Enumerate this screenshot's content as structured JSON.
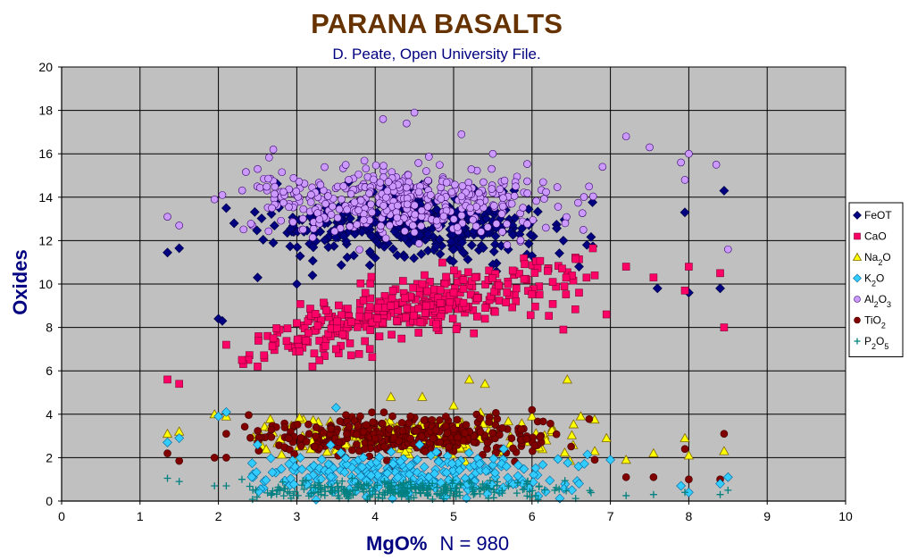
{
  "chart_data": {
    "type": "scatter",
    "title": "PARANA BASALTS",
    "subtitle": "D. Peate, Open University File.",
    "xlabel": "MgO%",
    "xlabel_note": "N = 980",
    "ylabel": "Oxides",
    "xlim": [
      0,
      10
    ],
    "ylim": [
      0,
      20
    ],
    "xticks": [
      "0",
      "1",
      "2",
      "3",
      "4",
      "5",
      "6",
      "7",
      "8",
      "9",
      "10"
    ],
    "yticks": [
      "0",
      "2",
      "4",
      "6",
      "8",
      "10",
      "12",
      "14",
      "16",
      "18",
      "20"
    ],
    "grid": true,
    "plot_background": "#c0c0c0",
    "legend_position": "right",
    "series": [
      {
        "name": "FeOT",
        "legend_parts": [
          [
            "FeOT",
            false
          ]
        ],
        "marker": "diamond",
        "color": "#000080",
        "stroke": "#000040",
        "center": [
          [
            2.0,
            8.4
          ],
          [
            2.05,
            8.3
          ],
          [
            1.35,
            11.45
          ],
          [
            1.5,
            11.65
          ],
          [
            2.1,
            13.5
          ],
          [
            2.2,
            12.8
          ],
          [
            2.5,
            10.3
          ],
          [
            2.7,
            11.9
          ],
          [
            3.0,
            10.0
          ],
          [
            3.2,
            10.4
          ],
          [
            3.6,
            12.2
          ],
          [
            4.0,
            11.2
          ],
          [
            4.5,
            12.0
          ],
          [
            5.0,
            11.6
          ],
          [
            5.5,
            10.9
          ],
          [
            6.0,
            11.3
          ],
          [
            6.4,
            12.0
          ],
          [
            6.7,
            11.8
          ],
          [
            6.6,
            10.8
          ],
          [
            7.6,
            9.8
          ],
          [
            7.95,
            13.3
          ],
          [
            8.0,
            9.6
          ],
          [
            8.4,
            9.8
          ],
          [
            8.45,
            14.3
          ]
        ],
        "cloud": {
          "n": 360,
          "x": [
            2.4,
            6.8
          ],
          "xpeak": 4.4,
          "xspread": 0.95,
          "y": 12.7,
          "yspread": 0.75
        }
      },
      {
        "name": "CaO",
        "legend_parts": [
          [
            "CaO",
            false
          ]
        ],
        "marker": "square",
        "color": "#ff0066",
        "stroke": "#800033",
        "center": [
          [
            1.35,
            5.6
          ],
          [
            1.5,
            5.4
          ],
          [
            2.1,
            7.2
          ],
          [
            2.3,
            6.5
          ],
          [
            2.5,
            6.2
          ],
          [
            2.7,
            7.5
          ],
          [
            3.0,
            8.2
          ],
          [
            3.2,
            6.2
          ],
          [
            3.5,
            7.0
          ],
          [
            3.8,
            8.5
          ],
          [
            4.2,
            9.0
          ],
          [
            4.6,
            10.0
          ],
          [
            5.0,
            9.6
          ],
          [
            5.4,
            8.4
          ],
          [
            5.8,
            9.8
          ],
          [
            6.2,
            10.6
          ],
          [
            6.4,
            7.9
          ],
          [
            6.6,
            9.6
          ],
          [
            6.8,
            10.4
          ],
          [
            6.95,
            8.6
          ],
          [
            7.2,
            10.8
          ],
          [
            7.55,
            10.3
          ],
          [
            7.95,
            9.7
          ],
          [
            8.0,
            10.8
          ],
          [
            8.4,
            10.5
          ],
          [
            8.45,
            8.0
          ]
        ],
        "cloud": {
          "n": 360,
          "x": [
            2.3,
            6.8
          ],
          "xpeak": 4.5,
          "xspread": 1.05,
          "trend": [
            5.3,
            0.8
          ],
          "yspread": 0.7
        }
      },
      {
        "name": "Na2O",
        "legend_parts": [
          [
            "Na",
            false
          ],
          [
            "2",
            true
          ],
          [
            "O",
            false
          ]
        ],
        "marker": "triangle",
        "color": "#ffff00",
        "stroke": "#806600",
        "center": [
          [
            1.35,
            3.1
          ],
          [
            1.5,
            3.2
          ],
          [
            1.95,
            4.0
          ],
          [
            2.1,
            3.9
          ],
          [
            4.2,
            4.8
          ],
          [
            4.6,
            4.8
          ],
          [
            5.0,
            4.4
          ],
          [
            5.2,
            5.6
          ],
          [
            5.4,
            5.4
          ],
          [
            6.0,
            3.9
          ],
          [
            6.45,
            5.6
          ],
          [
            6.8,
            2.3
          ],
          [
            6.95,
            2.9
          ],
          [
            7.2,
            1.9
          ],
          [
            7.55,
            2.2
          ],
          [
            7.95,
            2.9
          ],
          [
            8.0,
            2.1
          ],
          [
            8.45,
            2.3
          ]
        ],
        "cloud": {
          "n": 200,
          "x": [
            2.4,
            6.8
          ],
          "xpeak": 4.4,
          "xspread": 1.1,
          "y": 3.0,
          "yspread": 0.45
        }
      },
      {
        "name": "K2O",
        "legend_parts": [
          [
            "K",
            false
          ],
          [
            "2",
            true
          ],
          [
            "O",
            false
          ]
        ],
        "marker": "diamond",
        "color": "#33ccff",
        "stroke": "#006699",
        "center": [
          [
            1.35,
            2.7
          ],
          [
            1.5,
            2.9
          ],
          [
            2.0,
            3.9
          ],
          [
            2.1,
            4.1
          ],
          [
            2.5,
            2.6
          ],
          [
            3.5,
            4.3
          ],
          [
            6.6,
            0.8
          ],
          [
            7.0,
            1.9
          ],
          [
            7.9,
            0.7
          ],
          [
            8.0,
            0.4
          ],
          [
            8.4,
            0.8
          ],
          [
            8.5,
            1.1
          ]
        ],
        "cloud": {
          "n": 260,
          "x": [
            2.4,
            6.8
          ],
          "xpeak": 4.4,
          "xspread": 1.0,
          "y": 1.2,
          "yspread": 0.55
        }
      },
      {
        "name": "Al2O3",
        "legend_parts": [
          [
            "Al",
            false
          ],
          [
            "2",
            true
          ],
          [
            "O",
            false
          ],
          [
            "3",
            true
          ]
        ],
        "marker": "circle",
        "color": "#cc99ff",
        "stroke": "#330066",
        "center": [
          [
            1.35,
            13.1
          ],
          [
            1.5,
            12.7
          ],
          [
            1.95,
            13.9
          ],
          [
            2.05,
            14.1
          ],
          [
            2.5,
            15.3
          ],
          [
            2.7,
            16.2
          ],
          [
            4.1,
            17.6
          ],
          [
            4.5,
            17.9
          ],
          [
            4.4,
            17.4
          ],
          [
            5.1,
            16.9
          ],
          [
            5.5,
            16.0
          ],
          [
            6.9,
            15.4
          ],
          [
            7.2,
            16.8
          ],
          [
            7.5,
            16.3
          ],
          [
            7.9,
            15.6
          ],
          [
            8.0,
            16.0
          ],
          [
            7.95,
            14.8
          ],
          [
            8.35,
            15.5
          ],
          [
            8.5,
            11.6
          ]
        ],
        "cloud": {
          "n": 420,
          "x": [
            2.3,
            6.8
          ],
          "xpeak": 4.4,
          "xspread": 1.0,
          "y": 13.8,
          "yspread": 0.75
        }
      },
      {
        "name": "TiO2",
        "legend_parts": [
          [
            "TiO",
            false
          ],
          [
            "2",
            true
          ]
        ],
        "marker": "circle",
        "color": "#800000",
        "stroke": "#400000",
        "center": [
          [
            1.35,
            2.2
          ],
          [
            1.5,
            1.85
          ],
          [
            1.95,
            2.0
          ],
          [
            2.1,
            2.0
          ],
          [
            2.1,
            3.1
          ],
          [
            6.0,
            4.2
          ],
          [
            6.8,
            1.9
          ],
          [
            7.2,
            1.1
          ],
          [
            7.55,
            1.1
          ],
          [
            7.95,
            2.4
          ],
          [
            8.0,
            1.0
          ],
          [
            8.4,
            1.0
          ],
          [
            8.45,
            3.1
          ]
        ],
        "cloud": {
          "n": 340,
          "x": [
            2.3,
            6.8
          ],
          "xpeak": 4.4,
          "xspread": 0.95,
          "y": 3.0,
          "yspread": 0.5
        }
      },
      {
        "name": "P2O5",
        "legend_parts": [
          [
            "P",
            false
          ],
          [
            "2",
            true
          ],
          [
            "O",
            false
          ],
          [
            "5",
            true
          ]
        ],
        "marker": "plus",
        "color": "#008080",
        "stroke": "#008080",
        "center": [
          [
            1.35,
            1.05
          ],
          [
            1.5,
            0.9
          ],
          [
            1.95,
            0.7
          ],
          [
            2.1,
            0.7
          ],
          [
            2.3,
            1.0
          ],
          [
            7.2,
            0.25
          ],
          [
            7.55,
            0.3
          ],
          [
            7.95,
            0.4
          ],
          [
            8.4,
            0.3
          ],
          [
            8.5,
            0.5
          ]
        ],
        "cloud": {
          "n": 260,
          "x": [
            2.4,
            6.8
          ],
          "xpeak": 4.4,
          "xspread": 1.0,
          "y": 0.5,
          "yspread": 0.22
        }
      }
    ]
  }
}
